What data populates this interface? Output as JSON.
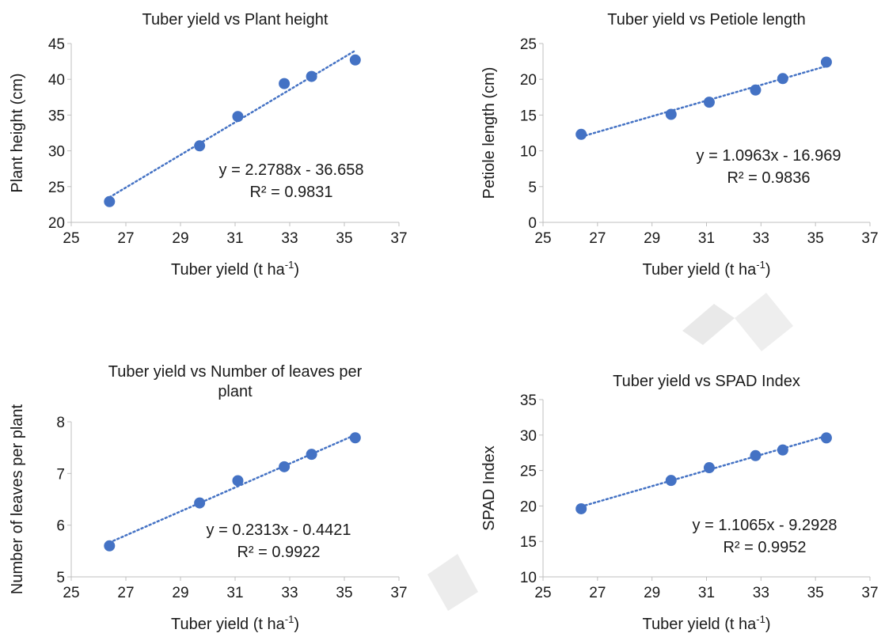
{
  "chart_data": [
    {
      "type": "scatter",
      "title": "Tuber yield vs Plant height",
      "xlabel": "Tuber yield (t ha",
      "xlabel_sup": "-1",
      "xlabel_tail": ")",
      "ylabel": "Plant height (cm)",
      "xlim": [
        25,
        37
      ],
      "ylim": [
        20,
        45
      ],
      "xticks": [
        25,
        27,
        29,
        31,
        33,
        35,
        37
      ],
      "yticks": [
        20,
        25,
        30,
        35,
        40,
        45
      ],
      "x": [
        26.4,
        29.7,
        31.1,
        32.8,
        33.8,
        35.4
      ],
      "y": [
        22.9,
        30.7,
        34.8,
        39.4,
        40.4,
        42.7
      ],
      "trendline": {
        "type": "linear",
        "slope": 2.2788,
        "intercept": -36.658,
        "x_range": [
          26.4,
          35.4
        ]
      },
      "equation": "y = 2.2788x - 36.658",
      "r2": "R² = 0.9831",
      "marker_color": "#4472C4",
      "grid": false,
      "legend": "none"
    },
    {
      "type": "scatter",
      "title": "Tuber yield vs Petiole length",
      "xlabel": "Tuber yield (t ha",
      "xlabel_sup": "-1",
      "xlabel_tail": ")",
      "ylabel": "Petiole length (cm)",
      "xlim": [
        25,
        37
      ],
      "ylim": [
        0,
        25
      ],
      "xticks": [
        25,
        27,
        29,
        31,
        33,
        35,
        37
      ],
      "yticks": [
        0,
        5,
        10,
        15,
        20,
        25
      ],
      "x": [
        26.4,
        29.7,
        31.1,
        32.8,
        33.8,
        35.4
      ],
      "y": [
        12.3,
        15.1,
        16.8,
        18.5,
        20.1,
        22.4
      ],
      "trendline": {
        "type": "linear",
        "slope": 1.0963,
        "intercept": -16.969,
        "x_range": [
          26.4,
          35.4
        ]
      },
      "equation": "y = 1.0963x - 16.969",
      "r2": "R² = 0.9836",
      "marker_color": "#4472C4",
      "grid": false,
      "legend": "none"
    },
    {
      "type": "scatter",
      "title": "Tuber yield vs Number of leaves per",
      "title_line2": "plant",
      "xlabel": "Tuber yield (t ha",
      "xlabel_sup": "-1",
      "xlabel_tail": ")",
      "ylabel": "Number of leaves per plant",
      "xlim": [
        25,
        37
      ],
      "ylim": [
        5,
        8
      ],
      "xticks": [
        25,
        27,
        29,
        31,
        33,
        35,
        37
      ],
      "yticks": [
        5,
        6,
        7,
        8
      ],
      "x": [
        26.4,
        29.7,
        31.1,
        32.8,
        33.8,
        35.4
      ],
      "y": [
        5.6,
        6.43,
        6.86,
        7.13,
        7.37,
        7.69
      ],
      "trendline": {
        "type": "linear",
        "slope": 0.2313,
        "intercept": -0.4421,
        "x_range": [
          26.4,
          35.4
        ]
      },
      "equation": "y = 0.2313x - 0.4421",
      "r2": "R² = 0.9922",
      "marker_color": "#4472C4",
      "grid": false,
      "legend": "none"
    },
    {
      "type": "scatter",
      "title": "Tuber yield vs SPAD Index",
      "xlabel": "Tuber yield (t ha",
      "xlabel_sup": "-1",
      "xlabel_tail": ")",
      "ylabel": "SPAD Index",
      "xlim": [
        25,
        37
      ],
      "ylim": [
        10,
        35
      ],
      "xticks": [
        25,
        27,
        29,
        31,
        33,
        35,
        37
      ],
      "yticks": [
        10,
        15,
        20,
        25,
        30,
        35
      ],
      "x": [
        26.4,
        29.7,
        31.1,
        32.8,
        33.8,
        35.4
      ],
      "y": [
        19.6,
        23.6,
        25.4,
        27.1,
        27.9,
        29.6
      ],
      "trendline": {
        "type": "linear",
        "slope": 1.1065,
        "intercept": -9.2928,
        "x_range": [
          26.4,
          35.4
        ]
      },
      "equation": "y = 1.1065x - 9.2928",
      "r2": "R² = 0.9952",
      "marker_color": "#4472C4",
      "grid": false,
      "legend": "none"
    }
  ]
}
